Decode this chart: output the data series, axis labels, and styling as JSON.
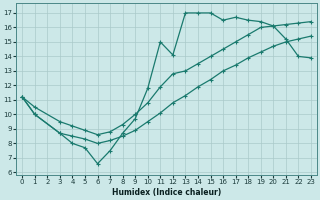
{
  "xlabel": "Humidex (Indice chaleur)",
  "bg_color": "#cce8e8",
  "line_color": "#1a7a6e",
  "grid_color": "#aacaca",
  "xlim": [
    -0.5,
    23.5
  ],
  "ylim": [
    5.8,
    17.7
  ],
  "xticks": [
    0,
    1,
    2,
    3,
    4,
    5,
    6,
    7,
    8,
    9,
    10,
    11,
    12,
    13,
    14,
    15,
    16,
    17,
    18,
    19,
    20,
    21,
    22,
    23
  ],
  "yticks": [
    6,
    7,
    8,
    9,
    10,
    11,
    12,
    13,
    14,
    15,
    16,
    17
  ],
  "curve1_x": [
    0,
    1,
    3,
    4,
    5,
    6,
    7,
    8,
    9,
    10,
    11,
    12,
    13,
    14,
    15,
    16,
    17,
    18,
    19,
    20,
    21,
    22,
    23
  ],
  "curve1_y": [
    11.2,
    10.0,
    8.7,
    8.0,
    7.7,
    6.6,
    7.5,
    8.7,
    9.7,
    11.8,
    15.0,
    14.1,
    17.0,
    17.0,
    17.0,
    16.5,
    16.7,
    16.5,
    16.4,
    16.1,
    15.2,
    14.0,
    13.9
  ],
  "curve2_x": [
    0,
    1,
    3,
    4,
    5,
    6,
    7,
    8,
    9,
    10,
    11,
    12,
    13,
    14,
    15,
    16,
    17,
    18,
    19,
    20,
    21,
    22,
    23
  ],
  "curve2_y": [
    11.2,
    10.5,
    9.5,
    9.2,
    8.9,
    8.6,
    8.8,
    9.3,
    10.0,
    10.8,
    11.9,
    12.8,
    13.0,
    13.5,
    14.0,
    14.5,
    15.0,
    15.5,
    16.0,
    16.1,
    16.2,
    16.3,
    16.4
  ],
  "curve3_x": [
    0,
    1,
    3,
    4,
    5,
    6,
    7,
    8,
    9,
    10,
    11,
    12,
    13,
    14,
    15,
    16,
    17,
    18,
    19,
    20,
    21,
    22,
    23
  ],
  "curve3_y": [
    11.2,
    10.0,
    8.7,
    8.5,
    8.3,
    8.0,
    8.2,
    8.5,
    8.9,
    9.5,
    10.1,
    10.8,
    11.3,
    11.9,
    12.4,
    13.0,
    13.4,
    13.9,
    14.3,
    14.7,
    15.0,
    15.2,
    15.4
  ]
}
